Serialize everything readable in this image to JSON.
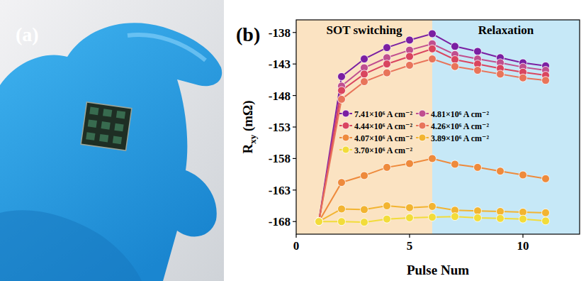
{
  "photo": {
    "label": "(a)"
  },
  "chart_data": {
    "type": "line",
    "label": "(b)",
    "x_label": "Pulse Num",
    "y_label": "Rxy (mΩ)",
    "xlim": [
      0,
      12.5
    ],
    "ylim": [
      -170,
      -136
    ],
    "xticks": [
      0,
      5,
      10
    ],
    "yticks": [
      -168,
      -163,
      -158,
      -153,
      -148,
      -143,
      -138
    ],
    "grid": false,
    "marker": "circle",
    "regions": [
      {
        "label": "SOT switching",
        "x": [
          0,
          6
        ],
        "color": "#fbe3c2"
      },
      {
        "label": "Relaxation",
        "x": [
          6,
          12.5
        ],
        "color": "#c6e8f7"
      }
    ],
    "x": [
      1,
      2,
      3,
      4,
      5,
      6,
      7,
      8,
      9,
      10,
      11
    ],
    "series": [
      {
        "name": "7.41×10⁶ A cm⁻²",
        "color": "#7a1fa2",
        "values": [
          -168,
          -145.0,
          -142.2,
          -140.4,
          -139.2,
          -138.2,
          -140.2,
          -141.0,
          -142.0,
          -142.8,
          -143.3
        ]
      },
      {
        "name": "4.81×10⁶ A cm⁻²",
        "color": "#c04f8f",
        "values": [
          -168,
          -146.5,
          -143.6,
          -142.0,
          -140.8,
          -139.8,
          -141.5,
          -142.2,
          -142.8,
          -143.5,
          -144.0
        ]
      },
      {
        "name": "4.44×10⁶ A cm⁻²",
        "color": "#d9455f",
        "values": [
          -168,
          -147.2,
          -144.6,
          -143.0,
          -141.8,
          -140.6,
          -142.3,
          -143.0,
          -143.7,
          -144.3,
          -144.8
        ]
      },
      {
        "name": "4.26×10⁶ A cm⁻²",
        "color": "#e8745a",
        "values": [
          -168,
          -148.6,
          -145.8,
          -144.4,
          -143.2,
          -142.2,
          -143.4,
          -144.0,
          -144.6,
          -145.2,
          -145.6
        ]
      },
      {
        "name": "4.07×10⁶ A cm⁻²",
        "color": "#ee8a3c",
        "values": [
          -168,
          -161.8,
          -160.7,
          -159.4,
          -158.8,
          -158.0,
          -158.9,
          -159.4,
          -160.0,
          -160.6,
          -161.2
        ]
      },
      {
        "name": "3.89×10⁶ A cm⁻²",
        "color": "#f2b431",
        "values": [
          -168,
          -166.0,
          -166.1,
          -165.5,
          -165.8,
          -165.6,
          -166.2,
          -166.3,
          -166.4,
          -166.5,
          -166.6
        ]
      },
      {
        "name": "3.70×10⁶ A cm⁻²",
        "color": "#f2dc3a",
        "values": [
          -168,
          -168,
          -168.1,
          -167.6,
          -167.4,
          -167.3,
          -167.2,
          -167.4,
          -167.5,
          -167.6,
          -167.9
        ]
      }
    ]
  }
}
